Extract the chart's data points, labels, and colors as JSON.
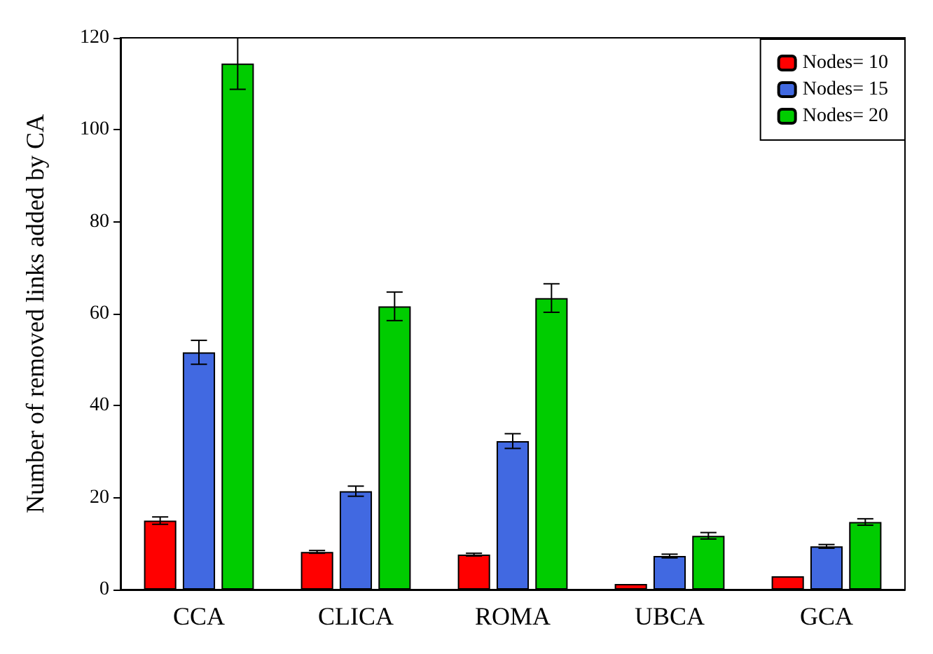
{
  "chart_data": {
    "type": "bar",
    "ylabel": "Number of removed links added by CA",
    "categories": [
      "CCA",
      "CLICA",
      "ROMA",
      "UBCA",
      "GCA"
    ],
    "series": [
      {
        "name": "Nodes= 10",
        "color": "#ff0000",
        "values": [
          15.0,
          8.2,
          7.6,
          1.2,
          2.9
        ],
        "errors": [
          0.8,
          0.3,
          0.3,
          null,
          null
        ]
      },
      {
        "name": "Nodes= 15",
        "color": "#4169e1",
        "values": [
          51.6,
          21.4,
          32.3,
          7.3,
          9.4
        ],
        "errors": [
          2.6,
          1.1,
          1.6,
          0.4,
          0.4
        ]
      },
      {
        "name": "Nodes= 20",
        "color": "#00cc00",
        "values": [
          114.4,
          61.6,
          63.4,
          11.7,
          14.7
        ],
        "errors": [
          5.6,
          3.1,
          3.1,
          0.7,
          0.7
        ]
      }
    ],
    "ylim": [
      0,
      120
    ],
    "yticks": [
      0,
      20,
      40,
      60,
      80,
      100,
      120
    ],
    "grid": false,
    "legend": "top right"
  }
}
